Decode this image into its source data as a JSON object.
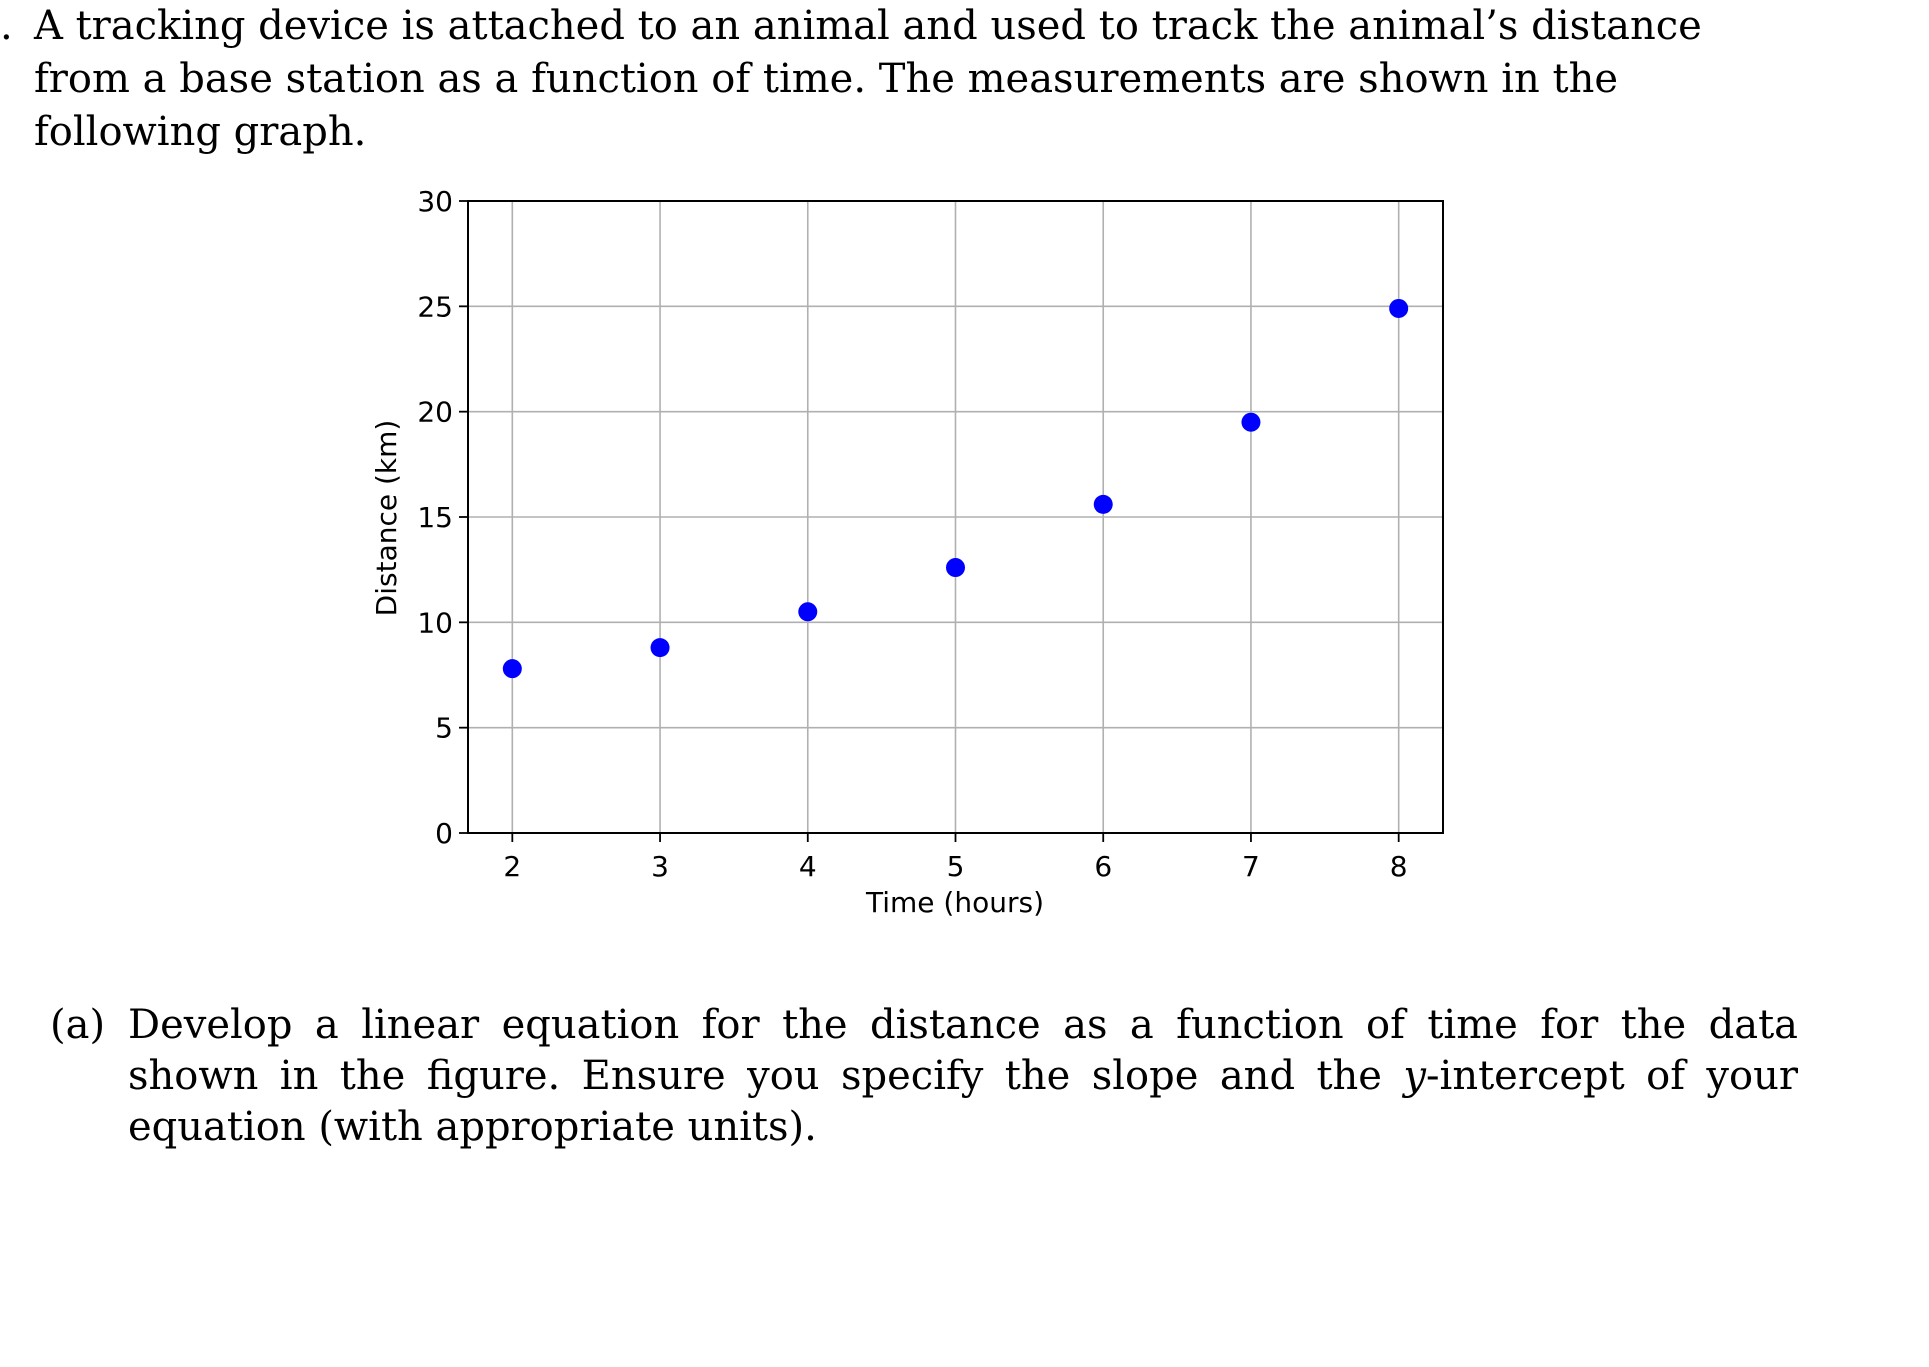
{
  "question": {
    "lead": ".",
    "intro": "A tracking device is attached to an animal and used to track the animal’s distance from a base station as a function of time. The measurements are shown in the following graph."
  },
  "part_a": {
    "label": "(a)",
    "text_before": "Develop a linear equation for the distance as a function of time for the data shown in the figure. Ensure you specify the slope and the ",
    "italic_var": "y",
    "text_after": "-intercept of your equation (with appropriate units)."
  },
  "chart_data": {
    "type": "scatter",
    "title": "",
    "xlabel": "Time (hours)",
    "ylabel": "Distance (km)",
    "xlim": [
      1.7,
      8.3
    ],
    "ylim": [
      0,
      30
    ],
    "xticks": [
      2,
      3,
      4,
      5,
      6,
      7,
      8
    ],
    "yticks": [
      0,
      5,
      10,
      15,
      20,
      25,
      30
    ],
    "grid": true,
    "marker_color": "#0000ff",
    "series": [
      {
        "x": [
          2,
          3,
          4,
          5,
          6,
          7,
          8
        ],
        "y": [
          7.8,
          8.8,
          10.5,
          12.6,
          15.6,
          19.5,
          24.9
        ]
      }
    ]
  }
}
